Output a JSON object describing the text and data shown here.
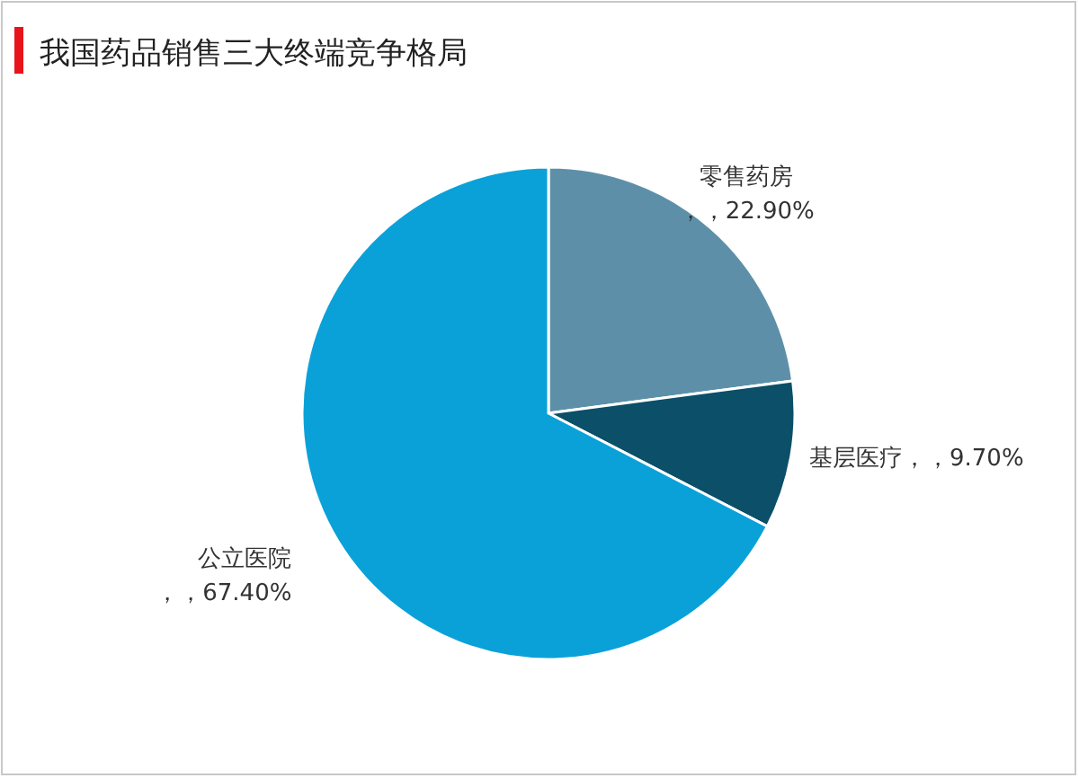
{
  "chart_data": {
    "type": "pie",
    "title": "我国药品销售三大终端竞争格局",
    "categories": [
      "零售药房",
      "基层医疗",
      "公立医院"
    ],
    "values": [
      22.9,
      9.7,
      67.4
    ],
    "value_labels": [
      "，，22.90%",
      "，，9.70%",
      "，，67.40%"
    ],
    "colors": [
      "#5d90a8",
      "#0b4f69",
      "#0aa1d9"
    ]
  }
}
